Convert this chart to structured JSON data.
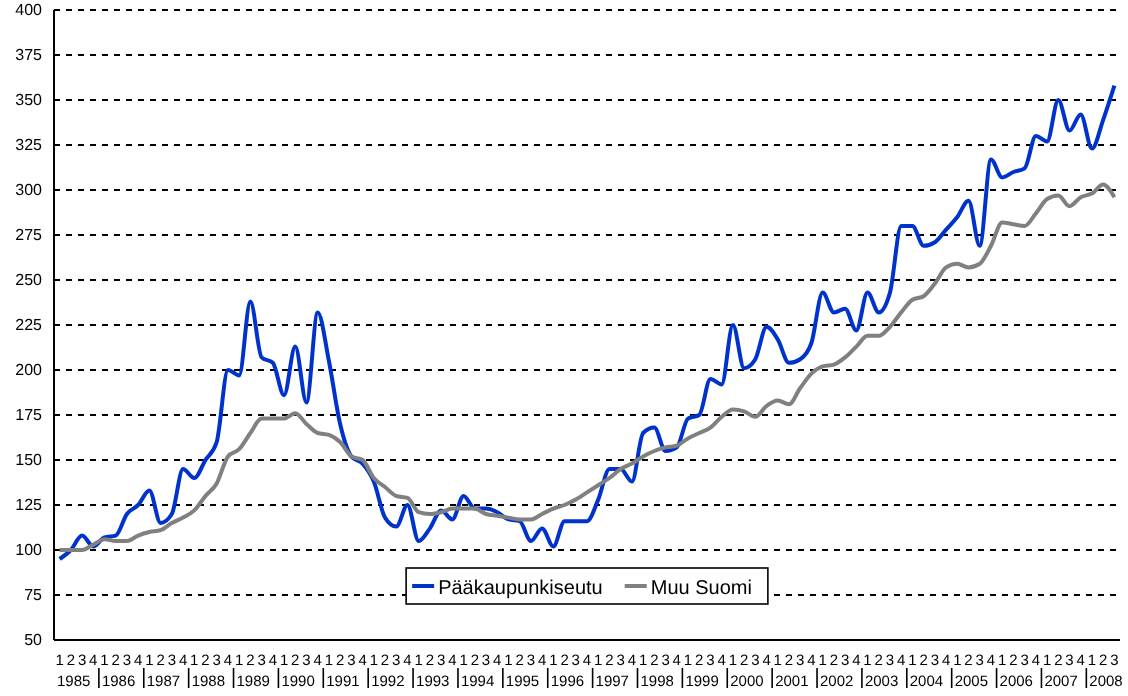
{
  "chart_data": {
    "type": "line",
    "categories": [
      "1",
      "2",
      "3",
      "4",
      "1",
      "2",
      "3",
      "4",
      "1",
      "2",
      "3",
      "4",
      "1",
      "2",
      "3",
      "4",
      "1",
      "2",
      "3",
      "4",
      "1",
      "2",
      "3",
      "4",
      "1",
      "2",
      "3",
      "4",
      "1",
      "2",
      "3",
      "4",
      "1",
      "2",
      "3",
      "4",
      "1",
      "2",
      "3",
      "4",
      "1",
      "2",
      "3",
      "4",
      "1",
      "2",
      "3",
      "4",
      "1",
      "2",
      "3",
      "4",
      "1",
      "2",
      "3",
      "4",
      "1",
      "2",
      "3",
      "4",
      "1",
      "2",
      "3",
      "4",
      "1",
      "2",
      "3",
      "4",
      "1",
      "2",
      "3",
      "4",
      "1",
      "2",
      "3",
      "4",
      "1",
      "2",
      "3",
      "4",
      "1",
      "2",
      "3",
      "4",
      "1",
      "2",
      "3",
      "4",
      "1",
      "2",
      "3",
      "4",
      "1",
      "2",
      "3"
    ],
    "series": [
      {
        "name": "Pääkaupunkiseutu",
        "color": "#0033cc",
        "values": [
          95,
          100,
          108,
          102,
          107,
          108,
          120,
          125,
          133,
          115,
          120,
          145,
          140,
          150,
          160,
          200,
          197,
          238,
          207,
          204,
          186,
          213,
          182,
          232,
          205,
          170,
          152,
          148,
          138,
          118,
          113,
          125,
          105,
          112,
          122,
          117,
          130,
          123,
          123,
          121,
          117,
          116,
          105,
          112,
          102,
          116,
          116,
          116,
          128,
          145,
          145,
          138,
          165,
          168,
          155,
          157,
          173,
          175,
          195,
          192,
          225,
          201,
          206,
          224,
          217,
          204,
          206,
          215,
          243,
          232,
          234,
          222,
          243,
          232,
          243,
          280,
          280,
          269,
          271,
          278,
          285,
          294,
          269,
          317,
          307,
          310,
          312,
          330,
          327,
          350,
          333,
          342,
          323,
          339,
          358
        ]
      },
      {
        "name": "Muu Suomi",
        "color": "#808080",
        "values": [
          100,
          100,
          100,
          103,
          106,
          105,
          105,
          108,
          110,
          111,
          115,
          118,
          122,
          130,
          137,
          152,
          156,
          165,
          173,
          173,
          173,
          176,
          170,
          165,
          164,
          160,
          152,
          150,
          140,
          135,
          130,
          129,
          121,
          120,
          121,
          123,
          123,
          123,
          120,
          119,
          118,
          117,
          117,
          120,
          123,
          125,
          128,
          132,
          136,
          140,
          145,
          148,
          152,
          155,
          157,
          158,
          162,
          165,
          168,
          174,
          178,
          177,
          174,
          180,
          183,
          181,
          190,
          198,
          202,
          203,
          207,
          213,
          219,
          219,
          224,
          232,
          239,
          241,
          248,
          257,
          259,
          257,
          259,
          269,
          282,
          281,
          280,
          287,
          295,
          297,
          291,
          296,
          298,
          303,
          296
        ]
      }
    ],
    "annotations": [
      "1985",
      "1986",
      "1987",
      "1988",
      "1989",
      "1990",
      "1991",
      "1992",
      "1993",
      "1994",
      "1995",
      "1996",
      "1997",
      "1998",
      "1999",
      "2000",
      "2001",
      "2002",
      "2003",
      "2004",
      "2005",
      "2006",
      "2007",
      "2008"
    ],
    "ylim": [
      50,
      400
    ],
    "yticks": [
      50,
      75,
      100,
      125,
      150,
      175,
      200,
      225,
      250,
      275,
      300,
      325,
      350,
      375,
      400
    ],
    "grid": "y",
    "legend": "bottom",
    "line_style": "solid",
    "marker": "none"
  }
}
